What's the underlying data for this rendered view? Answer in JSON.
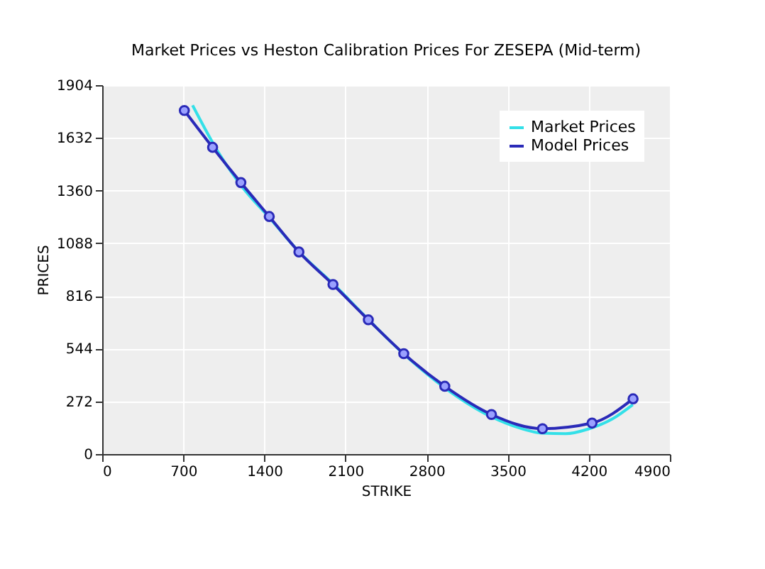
{
  "chart_data": {
    "type": "line",
    "title": "Market Prices vs Heston Calibration Prices For ZESEPA (Mid-term)",
    "xlabel": "STRIKE",
    "ylabel": "PRICES",
    "xlim": [
      0,
      4900
    ],
    "xticks": [
      0,
      700,
      1400,
      2100,
      2800,
      3500,
      4200,
      4900
    ],
    "ylim": [
      0,
      1904
    ],
    "yticks": [
      0,
      272,
      544,
      816,
      1088,
      1360,
      1632,
      1904
    ],
    "grid": true,
    "legend": "top right",
    "series": [
      {
        "name": "Market Prices",
        "color": "#33e0e8",
        "marker": "none",
        "x": [
          780,
          1000,
          1200,
          1450,
          1700,
          2000,
          2300,
          2600,
          2950,
          3350,
          3600,
          3800,
          4000,
          4200,
          4400,
          4580
        ],
        "values": [
          1800,
          1560,
          1385,
          1215,
          1043,
          875,
          693,
          518,
          345,
          195,
          135,
          108,
          105,
          130,
          180,
          255
        ]
      },
      {
        "name": "Model Prices",
        "color": "#2a2ab8",
        "marker": "circle",
        "x": [
          709,
          953,
          1197,
          1442,
          1698,
          1992,
          2297,
          2603,
          2957,
          3360,
          3800,
          4228,
          4582
        ],
        "values": [
          1773,
          1583,
          1401,
          1226,
          1043,
          875,
          693,
          518,
          350,
          204,
          131,
          160,
          285
        ]
      }
    ]
  }
}
